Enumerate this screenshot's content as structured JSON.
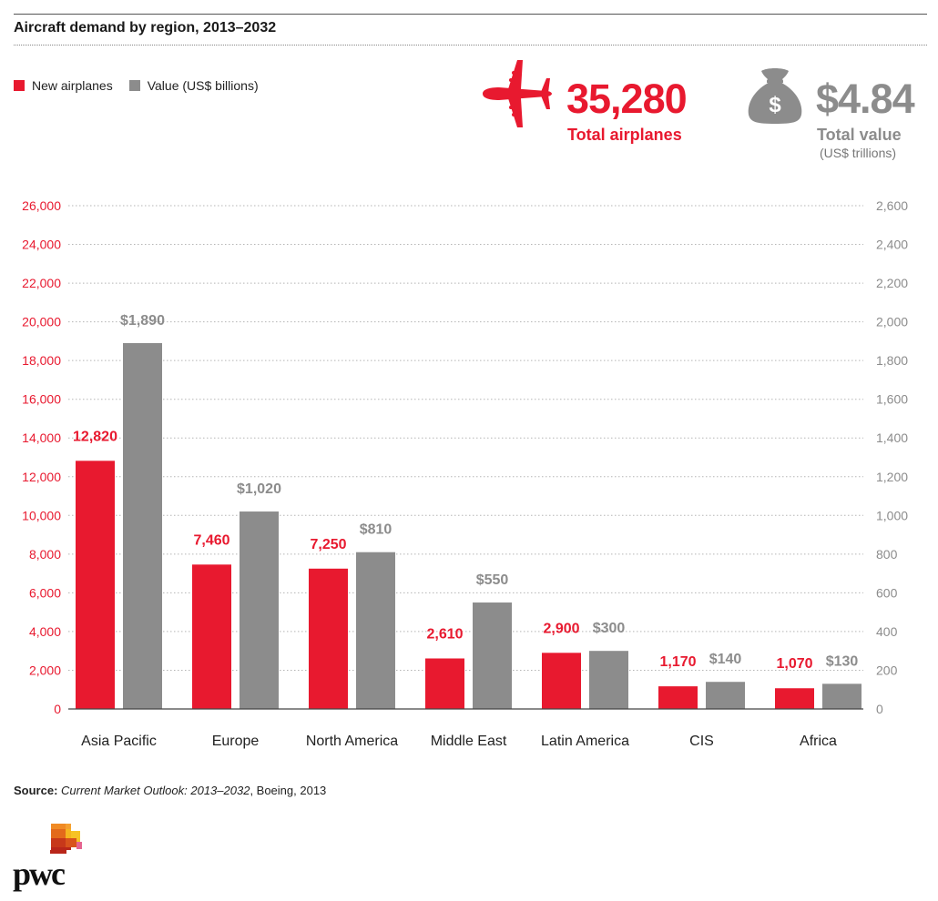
{
  "header": {
    "title": "Aircraft demand by region, 2013–2032"
  },
  "legend": {
    "items": [
      {
        "label": "New airplanes",
        "color": "#e8192f"
      },
      {
        "label": "Value (US$ billions)",
        "color": "#8c8c8c"
      }
    ]
  },
  "kpis": {
    "airplanes": {
      "value": "35,280",
      "label": "Total airplanes",
      "icon": "airplane-icon",
      "color": "#e8192f"
    },
    "value": {
      "value": "$4.84",
      "label": "Total value",
      "sublabel": "(US$ trillions)",
      "icon": "money-bag-icon",
      "symbol": "$",
      "color": "#8c8c8c"
    }
  },
  "chart_data": {
    "type": "bar",
    "title": "Aircraft demand by region, 2013–2032",
    "categories": [
      "Asia Pacific",
      "Europe",
      "North America",
      "Middle East",
      "Latin America",
      "CIS",
      "Africa"
    ],
    "series": [
      {
        "name": "New airplanes",
        "axis": "left",
        "color": "#e8192f",
        "values": [
          12820,
          7460,
          7250,
          2610,
          2900,
          1170,
          1070
        ],
        "labels": [
          "12,820",
          "7,460",
          "7,250",
          "2,610",
          "2,900",
          "1,170",
          "1,070"
        ]
      },
      {
        "name": "Value (US$ billions)",
        "axis": "right",
        "color": "#8c8c8c",
        "values": [
          1890,
          1020,
          810,
          550,
          300,
          140,
          130
        ],
        "labels": [
          "$1,890",
          "$1,020",
          "$810",
          "$550",
          "$300",
          "$140",
          "$130"
        ]
      }
    ],
    "y_left": {
      "range": [
        0,
        26000
      ],
      "ticks": [
        "0",
        "2,000",
        "4,000",
        "6,000",
        "8,000",
        "10,000",
        "12,000",
        "14,000",
        "16,000",
        "18,000",
        "20,000",
        "22,000",
        "24,000",
        "26,000"
      ],
      "color": "#e8192f"
    },
    "y_right": {
      "range": [
        0,
        2600
      ],
      "ticks": [
        "0",
        "200",
        "400",
        "600",
        "800",
        "1,000",
        "1,200",
        "1,400",
        "1,600",
        "1,800",
        "2,000",
        "2,200",
        "2,400",
        "2,600"
      ],
      "color": "#8c8c8c"
    },
    "grid": true,
    "legend_position": "top-left"
  },
  "footer": {
    "source_label": "Source:",
    "source_title": "Current Market Outlook: 2013–2032",
    "source_rest": ", Boeing, 2013",
    "logo_text": "pwc"
  }
}
